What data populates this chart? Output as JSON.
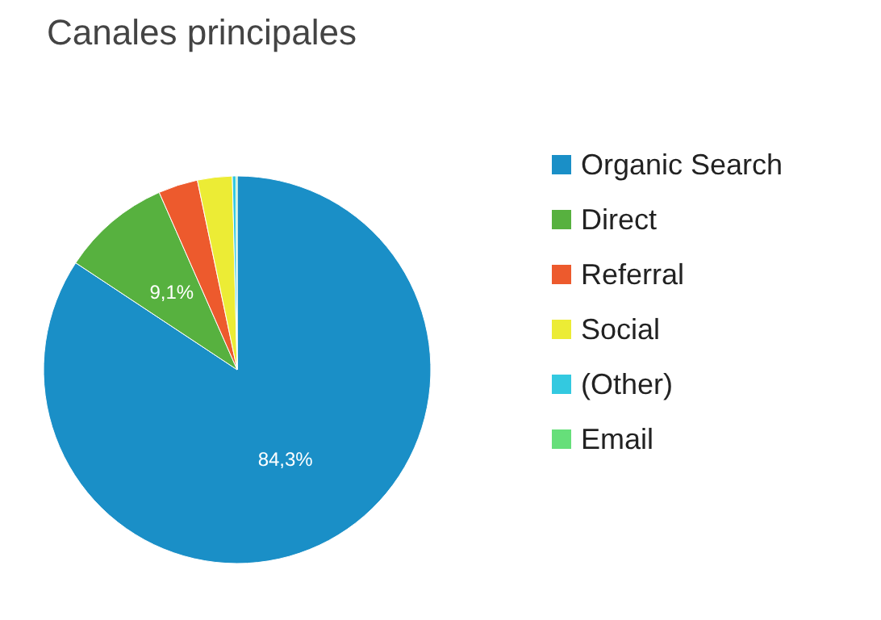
{
  "chart_data": {
    "type": "pie",
    "title": "Canales principales",
    "categories": [
      "Organic Search",
      "Direct",
      "Referral",
      "Social",
      "(Other)",
      "Email"
    ],
    "values": [
      84.3,
      9.1,
      3.3,
      2.9,
      0.3,
      0.1
    ],
    "colors": [
      "#1a8fc7",
      "#57b13f",
      "#ed5a2d",
      "#ecec35",
      "#33c9e0",
      "#66df7a"
    ],
    "value_labels": [
      "84,3%",
      "9,1%",
      null,
      null,
      null,
      null
    ],
    "legend": "right"
  }
}
